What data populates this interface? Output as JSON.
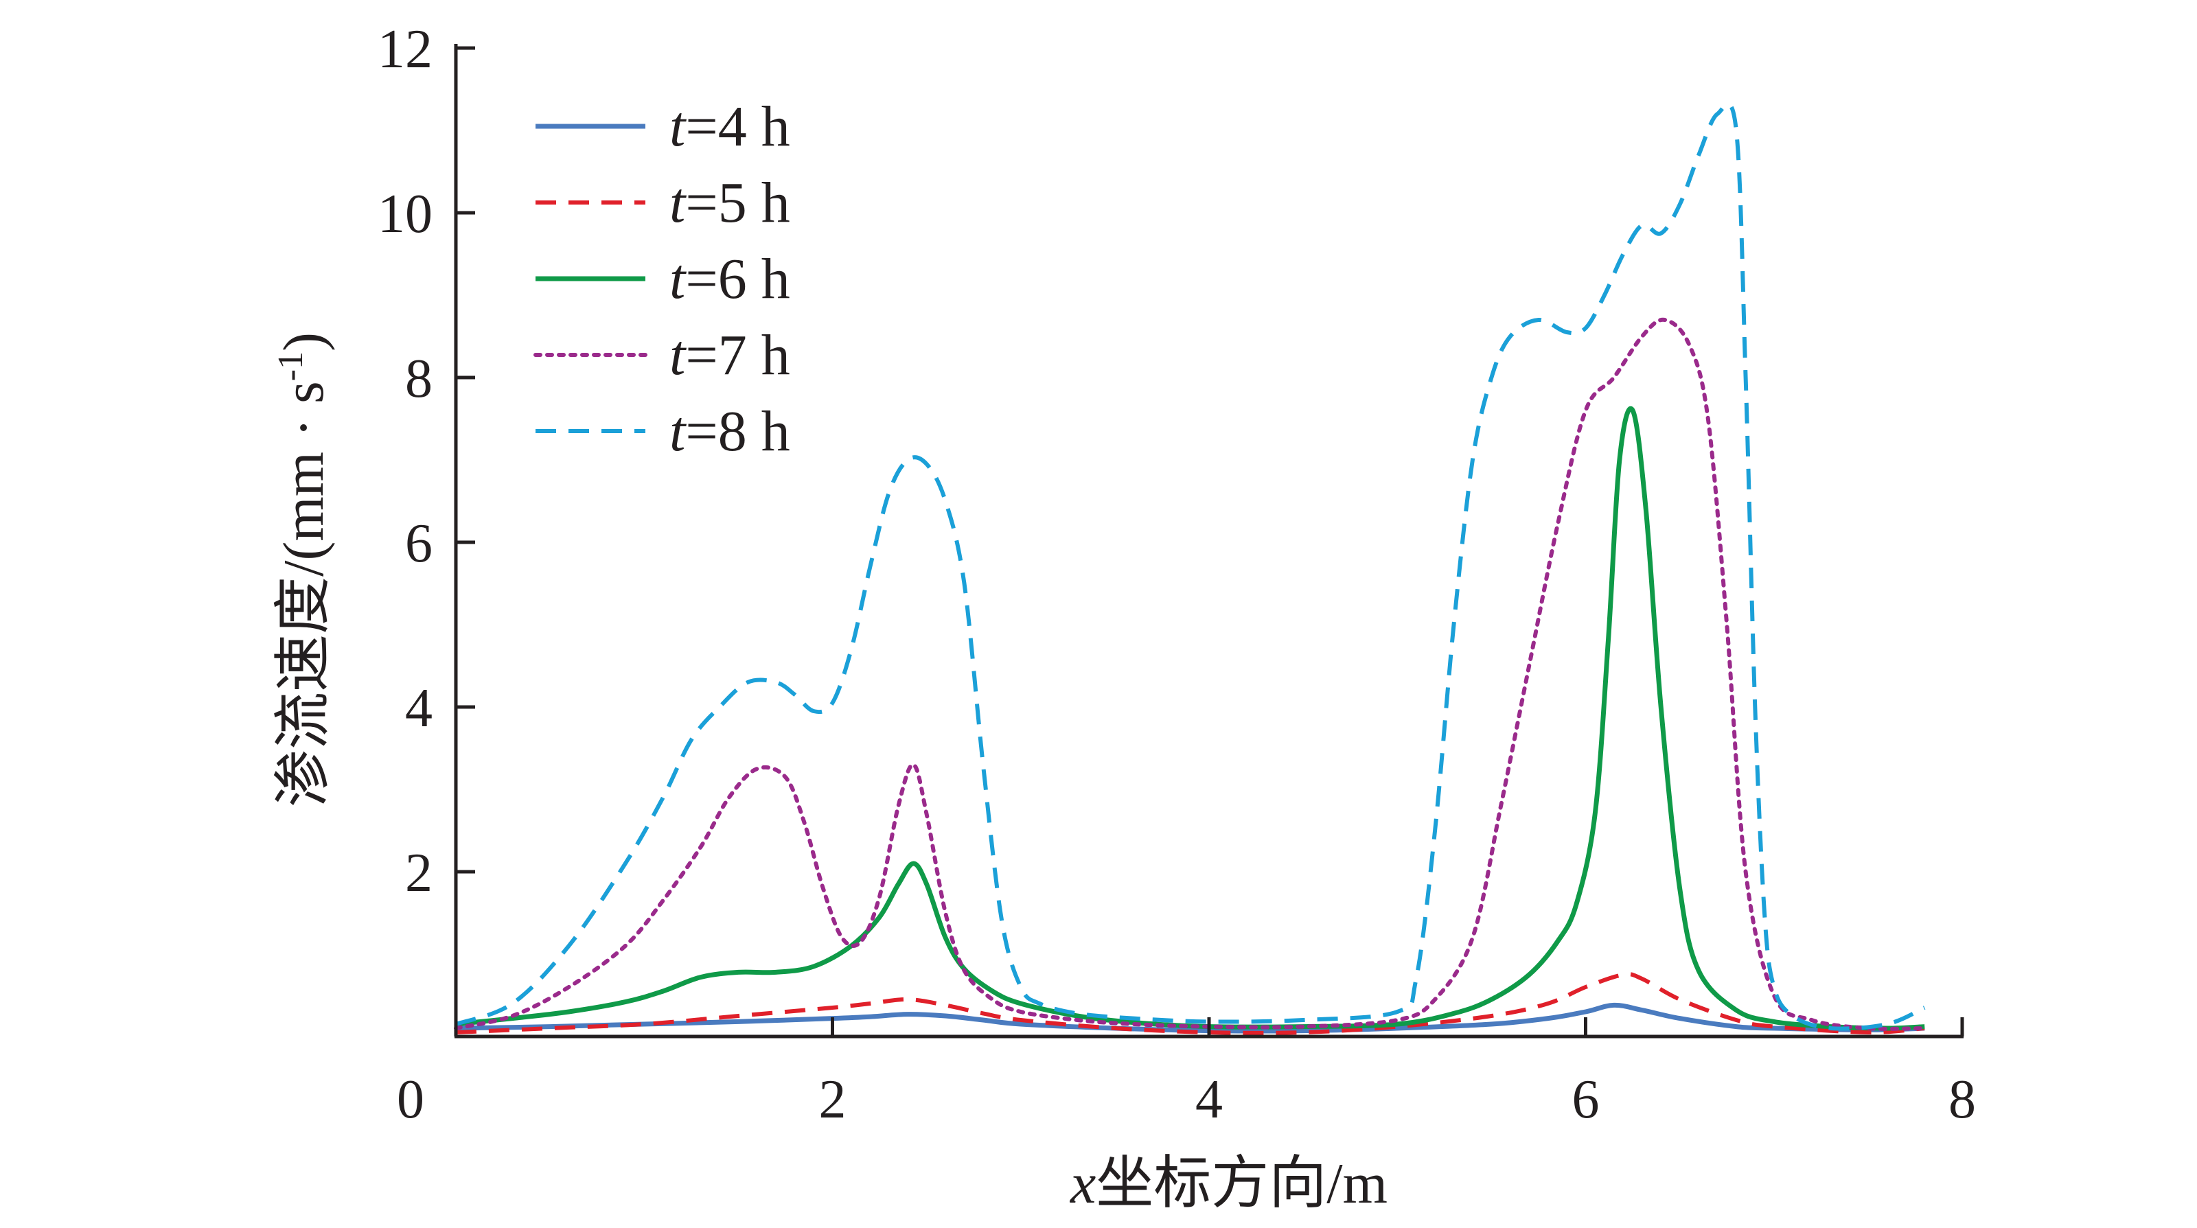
{
  "chart_data": {
    "type": "line",
    "title": "",
    "xlabel": "x坐标方向/m",
    "xlabel_parts": {
      "var": "x",
      "rest": "坐标方向/m"
    },
    "ylabel": "渗流速度/(mm · s⁻¹)",
    "ylabel_parts": {
      "main": "渗流速度/(mm · s",
      "sup": "-1",
      "close": ")"
    },
    "xlim": [
      0,
      8
    ],
    "ylim": [
      0,
      12
    ],
    "xticks": [
      0,
      2,
      4,
      6,
      8
    ],
    "xtick_labels": [
      "0",
      "2",
      "4",
      "6",
      "8"
    ],
    "yticks": [
      2,
      4,
      6,
      8,
      10,
      12
    ],
    "ytick_labels": [
      "2",
      "4",
      "6",
      "8",
      "10",
      "12"
    ],
    "grid": false,
    "legend_position": "top-left",
    "series": [
      {
        "name": "t=4 h",
        "legend_var": "t",
        "legend_rest": "=4 h",
        "color": "#4a7bbf",
        "style": "solid",
        "x": [
          0.0,
          0.5,
          1.0,
          1.5,
          2.0,
          2.2,
          2.4,
          2.6,
          2.8,
          3.0,
          3.5,
          4.0,
          4.5,
          5.0,
          5.5,
          5.8,
          6.0,
          6.15,
          6.3,
          6.5,
          6.8,
          7.0,
          7.5,
          7.8
        ],
        "y": [
          0.1,
          0.12,
          0.15,
          0.18,
          0.22,
          0.24,
          0.27,
          0.25,
          0.2,
          0.15,
          0.1,
          0.07,
          0.07,
          0.1,
          0.15,
          0.22,
          0.3,
          0.38,
          0.32,
          0.22,
          0.12,
          0.1,
          0.08,
          0.1
        ]
      },
      {
        "name": "t=5 h",
        "legend_var": "t",
        "legend_rest": "=5 h",
        "color": "#e0202a",
        "style": "dashed",
        "x": [
          0.0,
          0.5,
          1.0,
          1.5,
          2.0,
          2.2,
          2.4,
          2.6,
          2.8,
          3.0,
          3.5,
          4.0,
          4.5,
          5.0,
          5.5,
          5.8,
          6.0,
          6.2,
          6.3,
          6.5,
          6.8,
          7.0,
          7.5,
          7.8
        ],
        "y": [
          0.05,
          0.1,
          0.15,
          0.25,
          0.35,
          0.4,
          0.45,
          0.38,
          0.28,
          0.2,
          0.1,
          0.05,
          0.05,
          0.12,
          0.25,
          0.4,
          0.6,
          0.75,
          0.7,
          0.45,
          0.2,
          0.12,
          0.05,
          0.1
        ]
      },
      {
        "name": "t=6 h",
        "legend_var": "t",
        "legend_rest": "=6 h",
        "color": "#0f9a48",
        "style": "solid",
        "x": [
          0.0,
          0.3,
          0.6,
          0.9,
          1.1,
          1.3,
          1.5,
          1.7,
          1.9,
          2.1,
          2.25,
          2.35,
          2.43,
          2.5,
          2.6,
          2.7,
          2.85,
          3.0,
          3.3,
          3.6,
          4.0,
          4.5,
          5.0,
          5.3,
          5.5,
          5.7,
          5.85,
          5.95,
          6.05,
          6.12,
          6.18,
          6.25,
          6.32,
          6.4,
          6.5,
          6.6,
          6.8,
          7.0,
          7.3,
          7.6,
          7.8
        ],
        "y": [
          0.15,
          0.22,
          0.3,
          0.42,
          0.55,
          0.72,
          0.78,
          0.78,
          0.85,
          1.1,
          1.45,
          1.85,
          2.1,
          1.85,
          1.2,
          0.82,
          0.55,
          0.4,
          0.25,
          0.17,
          0.12,
          0.12,
          0.15,
          0.28,
          0.45,
          0.75,
          1.15,
          1.6,
          2.7,
          4.8,
          7.0,
          7.6,
          6.4,
          4.0,
          1.8,
          0.8,
          0.32,
          0.18,
          0.12,
          0.1,
          0.12
        ]
      },
      {
        "name": "t=7 h",
        "legend_var": "t",
        "legend_rest": "=7 h",
        "color": "#9a2a8b",
        "style": "dotted",
        "x": [
          0.0,
          0.3,
          0.6,
          0.9,
          1.1,
          1.3,
          1.45,
          1.6,
          1.75,
          1.85,
          1.95,
          2.05,
          2.15,
          2.25,
          2.35,
          2.43,
          2.5,
          2.6,
          2.7,
          2.85,
          3.0,
          3.3,
          3.6,
          4.0,
          4.5,
          5.0,
          5.2,
          5.4,
          5.55,
          5.7,
          5.85,
          6.0,
          6.15,
          6.3,
          6.42,
          6.55,
          6.65,
          6.75,
          6.85,
          7.0,
          7.2,
          7.5,
          7.8
        ],
        "y": [
          0.1,
          0.25,
          0.6,
          1.1,
          1.65,
          2.3,
          2.9,
          3.25,
          3.15,
          2.6,
          1.8,
          1.2,
          1.15,
          1.7,
          2.8,
          3.3,
          2.7,
          1.5,
          0.8,
          0.45,
          0.3,
          0.2,
          0.15,
          0.12,
          0.12,
          0.2,
          0.45,
          1.2,
          2.8,
          4.5,
          6.2,
          7.6,
          8.0,
          8.5,
          8.7,
          8.4,
          7.5,
          5.0,
          2.0,
          0.5,
          0.2,
          0.1,
          0.1
        ]
      },
      {
        "name": "t=8 h",
        "legend_var": "t",
        "legend_rest": "=8 h",
        "color": "#1ba0d8",
        "style": "dashed",
        "x": [
          0.0,
          0.3,
          0.6,
          0.9,
          1.1,
          1.25,
          1.4,
          1.55,
          1.7,
          1.8,
          1.9,
          2.0,
          2.1,
          2.2,
          2.3,
          2.4,
          2.5,
          2.6,
          2.7,
          2.8,
          2.9,
          3.0,
          3.1,
          3.3,
          3.6,
          4.0,
          4.5,
          5.0,
          5.1,
          5.2,
          5.3,
          5.4,
          5.5,
          5.6,
          5.75,
          5.9,
          6.0,
          6.1,
          6.2,
          6.3,
          6.4,
          6.5,
          6.6,
          6.7,
          6.8,
          6.85,
          6.9,
          6.95,
          7.0,
          7.1,
          7.3,
          7.6,
          7.8
        ],
        "y": [
          0.15,
          0.4,
          1.1,
          2.1,
          2.9,
          3.6,
          4.0,
          4.3,
          4.3,
          4.15,
          3.95,
          4.05,
          4.7,
          5.7,
          6.6,
          7.0,
          6.95,
          6.5,
          5.5,
          3.3,
          1.4,
          0.6,
          0.4,
          0.28,
          0.22,
          0.18,
          0.2,
          0.3,
          0.7,
          2.5,
          5.0,
          7.0,
          8.0,
          8.5,
          8.7,
          8.55,
          8.6,
          9.0,
          9.5,
          9.85,
          9.75,
          10.1,
          10.7,
          11.2,
          11.0,
          8.0,
          4.0,
          1.5,
          0.6,
          0.25,
          0.1,
          0.15,
          0.35
        ]
      }
    ]
  }
}
